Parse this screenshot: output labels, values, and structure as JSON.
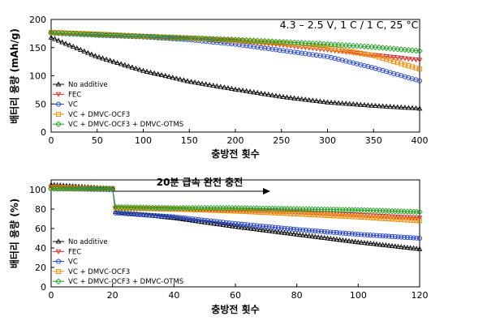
{
  "chart_data": [
    {
      "type": "scatter",
      "title": "",
      "annotation": "4.3 – 2.5 V, 1 C / 1 C, 25 °C",
      "xlabel": "충방전 횟수",
      "ylabel": "배터리 용량 (mAh/g)",
      "xlim": [
        0,
        400
      ],
      "ylim": [
        0,
        200
      ],
      "xticks": [
        0,
        50,
        100,
        150,
        200,
        250,
        300,
        350,
        400
      ],
      "yticks": [
        0,
        50,
        100,
        150,
        200
      ],
      "grid": false,
      "legend_position": "bottom-left",
      "x": [
        0,
        50,
        100,
        150,
        200,
        250,
        300,
        350,
        400
      ],
      "series": [
        {
          "name": "No additive",
          "color": "#000000",
          "marker": "triangle-up",
          "values": [
            168,
            134,
            109,
            90,
            76,
            63,
            53,
            47,
            42
          ]
        },
        {
          "name": "FEC",
          "color": "#e02020",
          "marker": "triangle-down",
          "values": [
            177,
            173,
            169,
            166,
            162,
            155,
            146,
            137,
            128
          ]
        },
        {
          "name": "VC",
          "color": "#1f3fd0",
          "marker": "circle",
          "values": [
            176,
            172,
            169,
            164,
            156,
            145,
            134,
            114,
            91
          ]
        },
        {
          "name": "VC + DMVC-OCF3",
          "color": "#f08a00",
          "marker": "square",
          "values": [
            177,
            174,
            170,
            167,
            163,
            158,
            150,
            136,
            112
          ]
        },
        {
          "name": "VC + DMVC-OCF3 + DMVC-OTMS",
          "color": "#22a022",
          "marker": "diamond",
          "values": [
            176,
            173,
            170,
            167,
            164,
            160,
            156,
            151,
            144
          ]
        }
      ]
    },
    {
      "type": "scatter",
      "title": "",
      "annotation": "20분 급속 완전 충전",
      "xlabel": "충방전 횟수",
      "ylabel": "배터리 용량 (%)",
      "xlim": [
        0,
        120
      ],
      "ylim": [
        0,
        110
      ],
      "xticks": [
        0,
        20,
        40,
        60,
        80,
        100,
        120
      ],
      "yticks": [
        0,
        20,
        40,
        60,
        80,
        100
      ],
      "grid": false,
      "legend_position": "bottom-left",
      "x": [
        0,
        20,
        21,
        40,
        60,
        80,
        100,
        120
      ],
      "series": [
        {
          "name": "No additive",
          "color": "#000000",
          "marker": "triangle-up",
          "values": [
            105,
            101,
            77,
            71,
            62,
            54,
            46,
            39
          ]
        },
        {
          "name": "FEC",
          "color": "#e02020",
          "marker": "triangle-down",
          "values": [
            103,
            101,
            81,
            80,
            79,
            77,
            74,
            71
          ]
        },
        {
          "name": "VC",
          "color": "#1f3fd0",
          "marker": "circle",
          "values": [
            101,
            100,
            76,
            72,
            65,
            59,
            54,
            50
          ]
        },
        {
          "name": "VC + DMVC-OCF3",
          "color": "#f08a00",
          "marker": "square",
          "values": [
            102,
            101,
            81,
            80,
            78,
            75,
            72,
            68
          ]
        },
        {
          "name": "VC + DMVC-OCF3 + DMVC-OTMS",
          "color": "#22a022",
          "marker": "diamond",
          "values": [
            101,
            101,
            82,
            81,
            81,
            80,
            79,
            77
          ]
        }
      ]
    }
  ]
}
